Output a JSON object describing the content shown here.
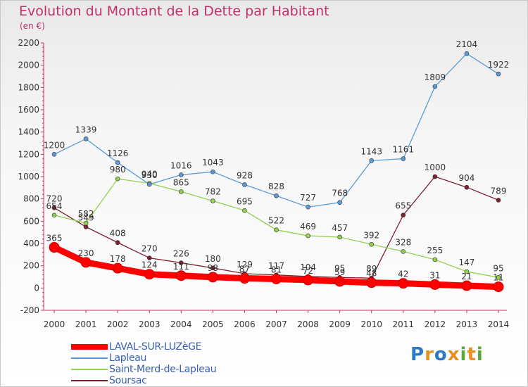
{
  "title": "Evolution du Montant de la Dette par Habitant",
  "unit": "(en €)",
  "logo": {
    "text": "Proxiti",
    "letters": [
      {
        "ch": "P",
        "color": "#2b78c5"
      },
      {
        "ch": "r",
        "color": "#e8901e"
      },
      {
        "ch": "o",
        "color": "#2b78c5"
      },
      {
        "ch": "x",
        "color": "#e8901e"
      },
      {
        "ch": "i",
        "color": "#5aa83a"
      },
      {
        "ch": "t",
        "color": "#e8901e"
      },
      {
        "ch": "i",
        "color": "#5aa83a"
      }
    ]
  },
  "chart_data": {
    "type": "line",
    "title": "Evolution du Montant de la Dette par Habitant",
    "ylabel": "(en €)",
    "xlabel": "",
    "x": [
      "2000",
      "2001",
      "2002",
      "2003",
      "2004",
      "2005",
      "2006",
      "2007",
      "2008",
      "2009",
      "2010",
      "2011",
      "2012",
      "2013",
      "2014"
    ],
    "ylim": [
      -200,
      2200
    ],
    "yticks": [
      -200,
      0,
      200,
      400,
      600,
      800,
      1000,
      1200,
      1400,
      1600,
      1800,
      2000,
      2200
    ],
    "grid": false,
    "legend_position": "bottom-left",
    "series": [
      {
        "name": "LAVAL-SUR-LUZèGE",
        "color": "#ff0000",
        "width": 9,
        "values": [
          365,
          230,
          178,
          124,
          111,
          98,
          87,
          81,
          72,
          59,
          48,
          42,
          31,
          21,
          11
        ],
        "labels": [
          "365",
          "230",
          "178",
          "124",
          "111",
          "98",
          "87",
          "81",
          "72",
          "59",
          "48",
          "42",
          "31",
          "21",
          "11"
        ]
      },
      {
        "name": "Lapleau",
        "color": "#5b9bd5",
        "width": 1.3,
        "values": [
          1200,
          1339,
          1126,
          930,
          1016,
          1043,
          928,
          828,
          727,
          768,
          1143,
          1161,
          1809,
          2104,
          1922
        ],
        "labels": [
          "1200",
          "1339",
          "1126",
          "930",
          "1016",
          "1043",
          "928",
          "828",
          "727",
          "768",
          "1143",
          "1161",
          "1809",
          "2104",
          "1922"
        ]
      },
      {
        "name": "Saint-Merd-de-Lapleau",
        "color": "#92d050",
        "width": 1.3,
        "values": [
          654,
          582,
          980,
          940,
          865,
          782,
          695,
          522,
          469,
          457,
          392,
          328,
          255,
          147,
          95
        ],
        "labels": [
          "654",
          "582",
          "980",
          "940",
          "865",
          "782",
          "695",
          "522",
          "469",
          "457",
          "392",
          "328",
          "255",
          "147",
          "95"
        ]
      },
      {
        "name": "Soursac",
        "color": "#7a2030",
        "width": 1.3,
        "values": [
          720,
          549,
          408,
          270,
          226,
          180,
          129,
          117,
          104,
          95,
          89,
          655,
          1000,
          904,
          789
        ],
        "labels": [
          "720",
          "549",
          "408",
          "270",
          "226",
          "180",
          "129",
          "117",
          "104",
          "95",
          "89",
          "655",
          "1000",
          "904",
          "789"
        ]
      }
    ]
  }
}
